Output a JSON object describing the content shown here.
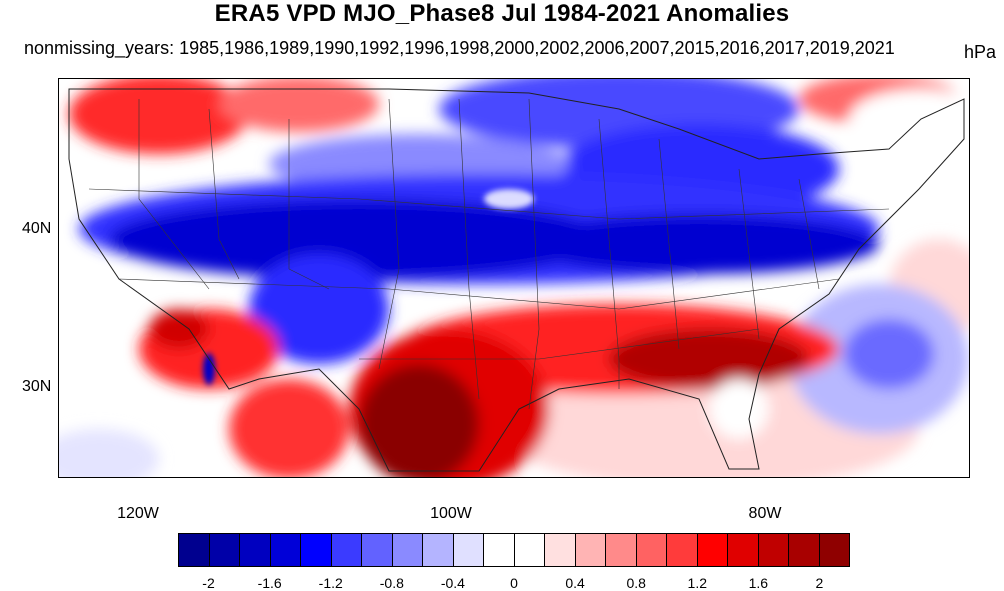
{
  "header": {
    "title": "ERA5 VPD MJO_Phase8 Jul 1984-2021 Anomalies",
    "subtitle": "nonmissing_years: 1985,1986,1989,1990,1992,1996,1998,2000,2002,2006,2007,2015,2016,2017,2019,2021",
    "units": "hPa"
  },
  "map": {
    "region": "Contiguous United States",
    "y_labels": [
      "40N",
      "30N"
    ],
    "x_labels": [
      "120W",
      "100W",
      "80W"
    ]
  },
  "colorbar": {
    "colors": [
      "#00008f",
      "#0000a8",
      "#0000c0",
      "#0000d8",
      "#0000ff",
      "#3b3bff",
      "#6262ff",
      "#8a8aff",
      "#b4b4ff",
      "#e0e0ff",
      "#ffffff",
      "#ffffff",
      "#ffe0e0",
      "#ffb4b4",
      "#ff8a8a",
      "#ff6262",
      "#ff3b3b",
      "#ff0000",
      "#e00000",
      "#c00000",
      "#a80000",
      "#8f0000"
    ],
    "labels": [
      "-2",
      "-1.6",
      "-1.2",
      "-0.8",
      "-0.4",
      "0",
      "0.4",
      "0.8",
      "1.2",
      "1.6",
      "2"
    ]
  },
  "colors": {
    "strong_blue": "#0000c8",
    "blue": "#2a2aff",
    "light_blue": "#9a9aff",
    "pale_blue": "#dcdcff",
    "pale_red": "#ffd8d8",
    "red": "#ff1a1a",
    "dark_red": "#b00000",
    "darkest_red": "#8a0000"
  }
}
